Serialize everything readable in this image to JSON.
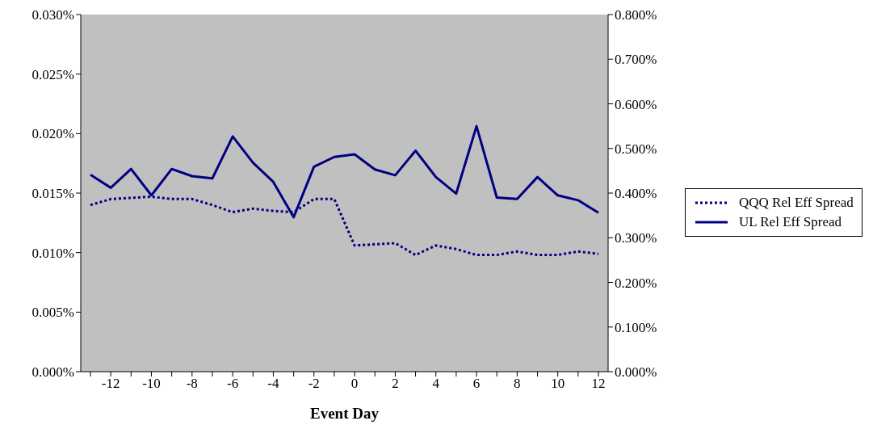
{
  "chart_data": {
    "type": "line",
    "xlabel": "Event Day",
    "categories": [
      null,
      "-12",
      null,
      "-10",
      null,
      "-8",
      null,
      "-6",
      null,
      "-4",
      null,
      "-2",
      null,
      "0",
      null,
      "2",
      null,
      "4",
      null,
      "6",
      null,
      "8",
      null,
      "10",
      null,
      "12"
    ],
    "series": [
      {
        "name": "QQQ Rel Eff Spread",
        "color": "#000080",
        "line_style": "dotted",
        "values": [
          0.014,
          0.0145,
          0.0146,
          0.0147,
          0.0145,
          0.0145,
          0.014,
          0.0134,
          0.0137,
          0.0135,
          0.0134,
          0.0145,
          0.0145,
          0.0106,
          0.0107,
          0.0108,
          0.0098,
          0.0106,
          0.0103,
          0.0098,
          0.0098,
          0.0101,
          0.0098,
          0.0098,
          0.0101,
          0.0099
        ]
      },
      {
        "name": "UL Rel Eff Spread",
        "color": "#000080",
        "line_style": "solid",
        "axis": "y2",
        "values": [
          0.441,
          0.412,
          0.454,
          0.395,
          0.454,
          0.438,
          0.433,
          0.527,
          0.468,
          0.425,
          0.346,
          0.459,
          0.481,
          0.487,
          0.453,
          0.44,
          0.495,
          0.436,
          0.399,
          0.55,
          0.39,
          0.387,
          0.436,
          0.395,
          0.384,
          0.356
        ]
      }
    ],
    "ylim": [
      0,
      0.03
    ],
    "yticks": [
      {
        "value": 0,
        "label": "0.000%"
      },
      {
        "value": 0.005,
        "label": "0.005%"
      },
      {
        "value": 0.01,
        "label": "0.010%"
      },
      {
        "value": 0.015,
        "label": "0.015%"
      },
      {
        "value": 0.02,
        "label": "0.020%"
      },
      {
        "value": 0.025,
        "label": "0.025%"
      },
      {
        "value": 0.03,
        "label": "0.030%"
      }
    ],
    "y2lim": [
      0,
      0.8
    ],
    "y2ticks": [
      {
        "value": 0,
        "label": "0.000%"
      },
      {
        "value": 0.1,
        "label": "0.100%"
      },
      {
        "value": 0.2,
        "label": "0.200%"
      },
      {
        "value": 0.3,
        "label": "0.300%"
      },
      {
        "value": 0.4,
        "label": "0.400%"
      },
      {
        "value": 0.5,
        "label": "0.500%"
      },
      {
        "value": 0.6,
        "label": "0.600%"
      },
      {
        "value": 0.7,
        "label": "0.700%"
      },
      {
        "value": 0.8,
        "label": "0.800%"
      }
    ],
    "grid": false,
    "legend": "right",
    "marker": "none"
  }
}
